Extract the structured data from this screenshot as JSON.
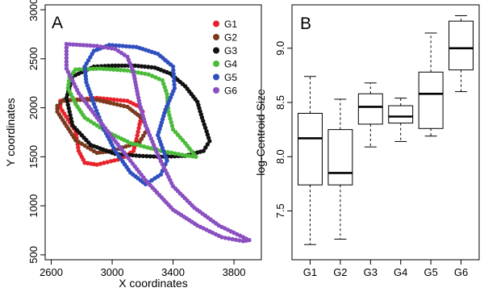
{
  "chart_data": [
    {
      "panel_label": "A",
      "type": "scatter",
      "xlabel": "X coordinates",
      "ylabel": "Y coordinates",
      "xlim": [
        2560,
        3980
      ],
      "ylim": [
        450,
        3050
      ],
      "x_ticks": [
        2600,
        3000,
        3400,
        3800
      ],
      "y_ticks": [
        500,
        1000,
        1500,
        2000,
        2500,
        3000
      ],
      "x_tick_labels": [
        "2600",
        "3000",
        "3400",
        "3800"
      ],
      "y_tick_labels": [
        "500",
        "1000",
        "1500",
        "2000",
        "2500",
        "3000"
      ],
      "legend_position": "top-right",
      "series": [
        {
          "name": "G1",
          "color": "#e8222a",
          "closed": true,
          "points": [
            [
              2660,
              2070
            ],
            [
              2900,
              2100
            ],
            [
              3100,
              2070
            ],
            [
              3180,
              2010
            ],
            [
              3200,
              1960
            ],
            [
              3180,
              1830
            ],
            [
              3160,
              1680
            ],
            [
              3140,
              1560
            ],
            [
              3060,
              1480
            ],
            [
              2900,
              1420
            ],
            [
              2820,
              1440
            ],
            [
              2780,
              1560
            ],
            [
              2760,
              1760
            ],
            [
              2660,
              2000
            ]
          ]
        },
        {
          "name": "G2",
          "color": "#7b3a1e",
          "closed": true,
          "points": [
            [
              2640,
              2020
            ],
            [
              2680,
              2080
            ],
            [
              2900,
              2080
            ],
            [
              3100,
              2010
            ],
            [
              3200,
              1890
            ],
            [
              3230,
              1780
            ],
            [
              3180,
              1650
            ],
            [
              3000,
              1560
            ],
            [
              2900,
              1540
            ],
            [
              2760,
              1670
            ],
            [
              2640,
              1960
            ]
          ]
        },
        {
          "name": "G3",
          "color": "#111111",
          "closed": true,
          "points": [
            [
              2740,
              2320
            ],
            [
              2880,
              2420
            ],
            [
              3000,
              2430
            ],
            [
              3150,
              2430
            ],
            [
              3280,
              2410
            ],
            [
              3380,
              2350
            ],
            [
              3480,
              2220
            ],
            [
              3560,
              2060
            ],
            [
              3590,
              1900
            ],
            [
              3620,
              1760
            ],
            [
              3640,
              1660
            ],
            [
              3600,
              1560
            ],
            [
              3480,
              1510
            ],
            [
              3320,
              1500
            ],
            [
              3180,
              1510
            ],
            [
              3020,
              1530
            ],
            [
              2860,
              1620
            ],
            [
              2740,
              1820
            ],
            [
              2700,
              2100
            ]
          ]
        },
        {
          "name": "G4",
          "color": "#4cbb3a",
          "closed": true,
          "points": [
            [
              2720,
              2310
            ],
            [
              2760,
              2390
            ],
            [
              2920,
              2400
            ],
            [
              3100,
              2380
            ],
            [
              3240,
              2340
            ],
            [
              3330,
              2280
            ],
            [
              3360,
              2140
            ],
            [
              3370,
              1960
            ],
            [
              3400,
              1780
            ],
            [
              3480,
              1640
            ],
            [
              3550,
              1500
            ],
            [
              3460,
              1520
            ],
            [
              3320,
              1560
            ],
            [
              3120,
              1640
            ],
            [
              2960,
              1760
            ],
            [
              2820,
              1900
            ],
            [
              2760,
              2040
            ],
            [
              2710,
              2200
            ]
          ]
        },
        {
          "name": "G5",
          "color": "#2f4fbf",
          "closed": true,
          "points": [
            [
              2820,
              2420
            ],
            [
              2880,
              2580
            ],
            [
              2980,
              2640
            ],
            [
              3160,
              2620
            ],
            [
              3300,
              2550
            ],
            [
              3400,
              2420
            ],
            [
              3410,
              2200
            ],
            [
              3350,
              1980
            ],
            [
              3300,
              1720
            ],
            [
              3360,
              1460
            ],
            [
              3320,
              1320
            ],
            [
              3220,
              1220
            ],
            [
              3120,
              1340
            ],
            [
              3020,
              1560
            ],
            [
              2940,
              1800
            ],
            [
              2880,
              2040
            ],
            [
              2830,
              2260
            ]
          ]
        },
        {
          "name": "G6",
          "color": "#8a4fc0",
          "closed": true,
          "points": [
            [
              2700,
              2650
            ],
            [
              2900,
              2630
            ],
            [
              3020,
              2600
            ],
            [
              3100,
              2520
            ],
            [
              3140,
              2360
            ],
            [
              3160,
              2200
            ],
            [
              3180,
              2040
            ],
            [
              3220,
              1820
            ],
            [
              3300,
              1520
            ],
            [
              3400,
              1200
            ],
            [
              3540,
              980
            ],
            [
              3700,
              800
            ],
            [
              3860,
              680
            ],
            [
              3900,
              650
            ],
            [
              3860,
              640
            ],
            [
              3720,
              680
            ],
            [
              3560,
              800
            ],
            [
              3400,
              960
            ],
            [
              3220,
              1260
            ],
            [
              3050,
              1600
            ],
            [
              2900,
              1900
            ],
            [
              2780,
              2150
            ],
            [
              2700,
              2400
            ]
          ]
        }
      ]
    },
    {
      "panel_label": "B",
      "type": "boxplot",
      "xlabel": "",
      "ylabel": "log-Centroid Size",
      "ylim": [
        7.05,
        9.4
      ],
      "y_ticks": [
        7.5,
        8.0,
        8.5,
        9.0
      ],
      "y_tick_labels": [
        "7.5",
        "8.0",
        "8.5",
        "9.0"
      ],
      "categories": [
        "G1",
        "G2",
        "G3",
        "G4",
        "G5",
        "G6"
      ],
      "boxes": [
        {
          "min": 7.19,
          "q1": 7.74,
          "median": 8.17,
          "q3": 8.4,
          "max": 8.74
        },
        {
          "min": 7.24,
          "q1": 7.74,
          "median": 7.85,
          "q3": 8.25,
          "max": 8.53
        },
        {
          "min": 8.09,
          "q1": 8.3,
          "median": 8.46,
          "q3": 8.58,
          "max": 8.68
        },
        {
          "min": 8.14,
          "q1": 8.31,
          "median": 8.37,
          "q3": 8.47,
          "max": 8.54
        },
        {
          "min": 8.19,
          "q1": 8.26,
          "median": 8.58,
          "q3": 8.78,
          "max": 9.14
        },
        {
          "min": 8.6,
          "q1": 8.8,
          "median": 9.0,
          "q3": 9.25,
          "max": 9.3
        }
      ]
    }
  ]
}
